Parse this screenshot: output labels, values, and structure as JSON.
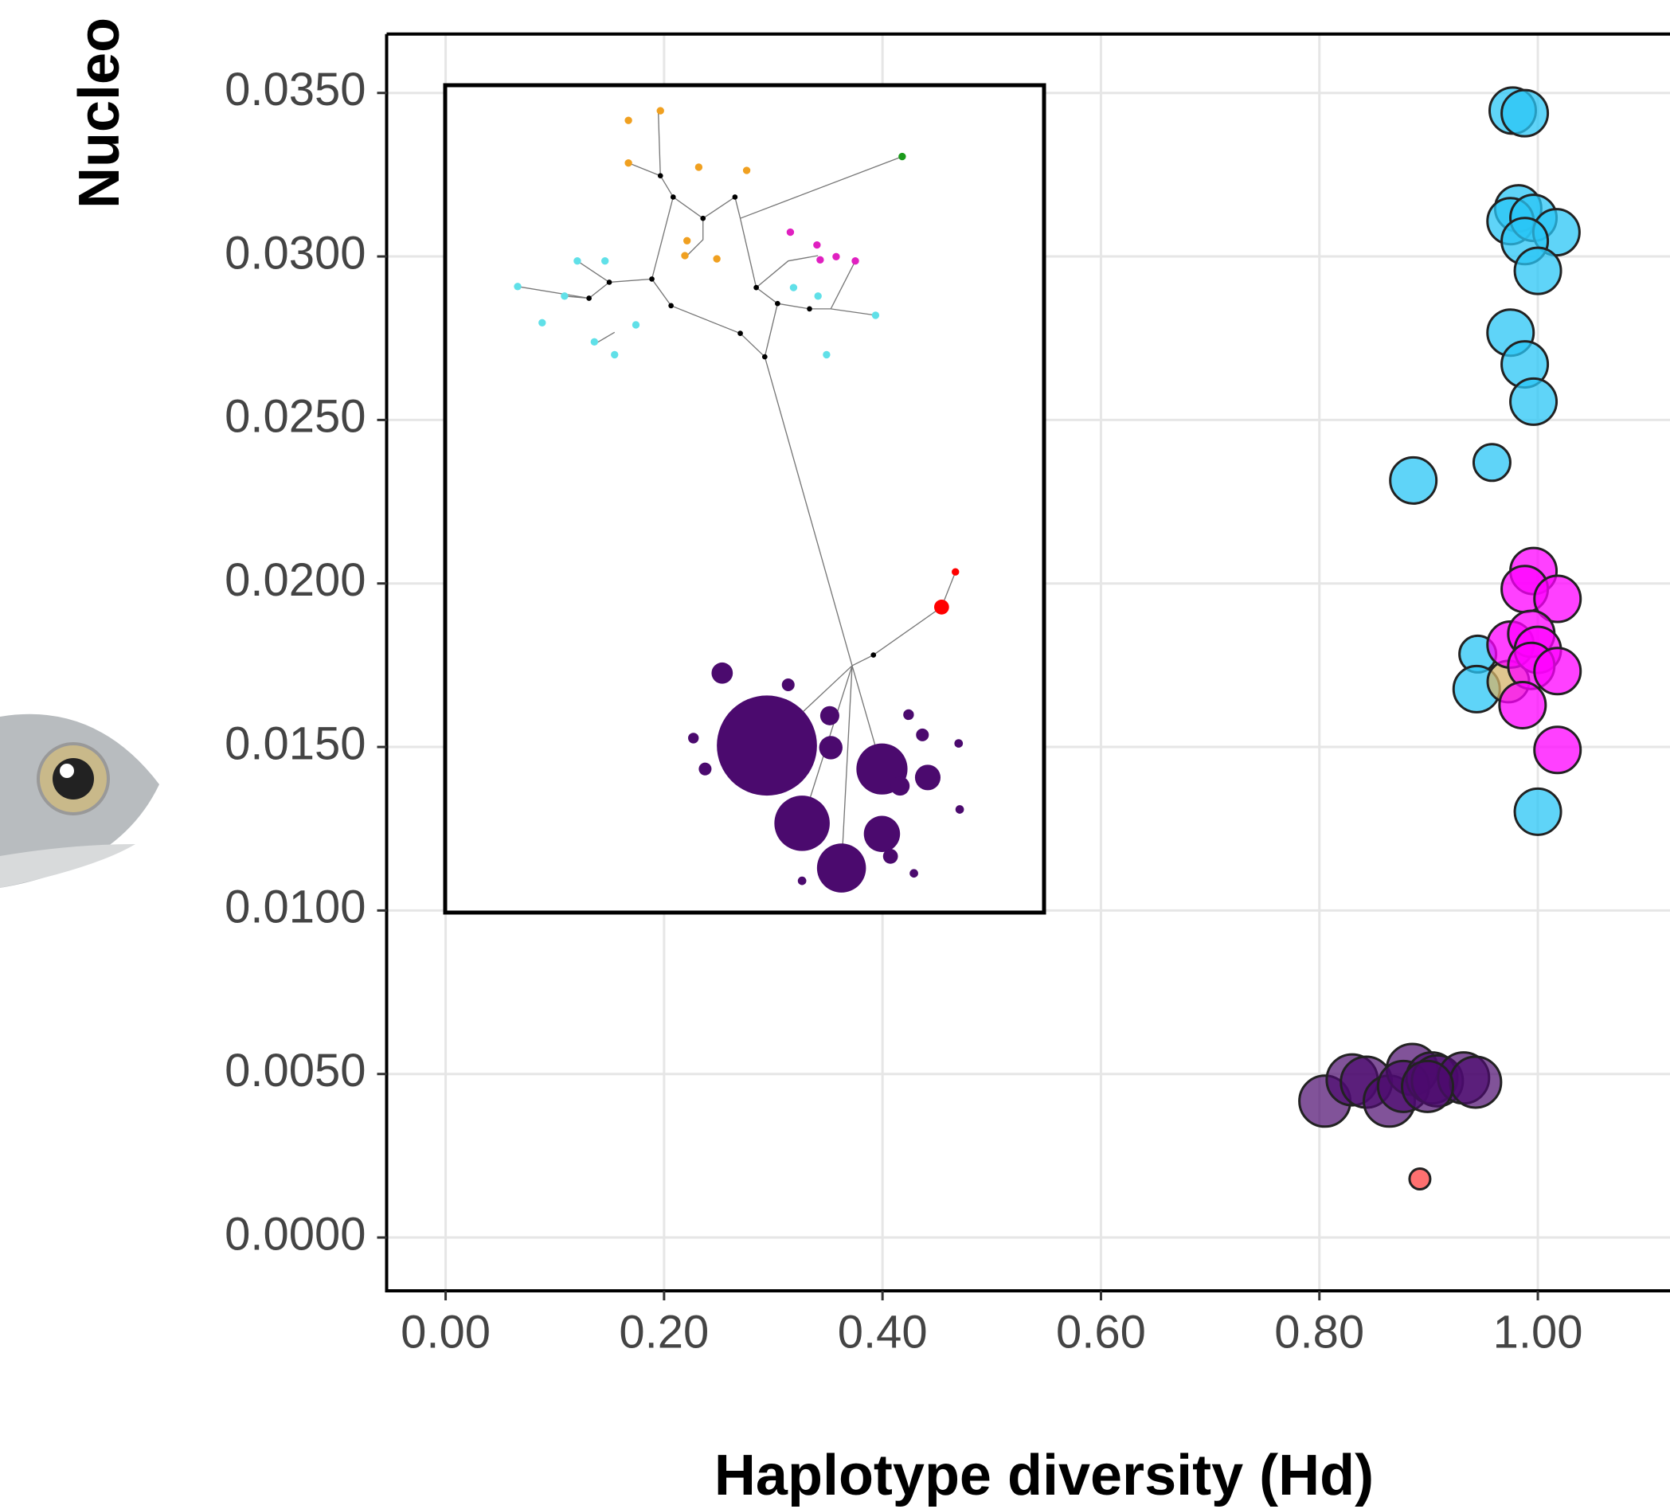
{
  "chart_data": {
    "type": "scatter",
    "x_label": "Haplotype diversity (Hd)",
    "y_label": "Nucleo",
    "xlim": [
      -0.054,
      1.121
    ],
    "ylim": [
      -0.00163,
      0.0368
    ],
    "xticks": [
      {
        "value": 0,
        "label": "0.00"
      },
      {
        "value": 0.2,
        "label": "0.20"
      },
      {
        "value": 0.4,
        "label": "0.40"
      },
      {
        "value": 0.6,
        "label": "0.60"
      },
      {
        "value": 0.8,
        "label": "0.80"
      },
      {
        "value": 1,
        "label": "1.00"
      }
    ],
    "yticks": [
      {
        "value": 0,
        "label": "0.0000"
      },
      {
        "value": 0.005,
        "label": "0.0050"
      },
      {
        "value": 0.01,
        "label": "0.0100"
      },
      {
        "value": 0.015,
        "label": "0.0150"
      },
      {
        "value": 0.02,
        "label": "0.0200"
      },
      {
        "value": 0.025,
        "label": "0.0250"
      },
      {
        "value": 0.03,
        "label": "0.0300"
      },
      {
        "value": 0.035,
        "label": "0.0350"
      }
    ],
    "grid": true,
    "series": [
      {
        "color": "#29c5f6",
        "x": [
          0.977,
          0.988,
          0.982,
          0.975,
          0.996,
          1.017,
          0.988,
          1.0,
          0.975,
          0.988,
          0.996,
          0.958,
          0.886,
          0.945,
          0.944,
          1.0
        ],
        "values": [
          0.03446,
          0.03438,
          0.03147,
          0.03108,
          0.03118,
          0.03074,
          0.03047,
          0.02956,
          0.02767,
          0.0267,
          0.02556,
          0.0237,
          0.02315,
          0.01784,
          0.01677,
          0.01302
        ]
      },
      {
        "color": "#d4b46a",
        "x": [
          0.973
        ],
        "values": [
          0.017
        ]
      },
      {
        "color": "#ff00ff",
        "x": [
          0.996,
          0.988,
          1.018,
          0.975,
          0.994,
          1.0,
          0.994,
          1.018,
          0.986,
          1.018
        ],
        "values": [
          0.02038,
          0.01983,
          0.01953,
          0.01813,
          0.01846,
          0.01797,
          0.01748,
          0.01732,
          0.01628,
          0.01491
        ]
      },
      {
        "color": "#4b0a6e",
        "x": [
          0.805,
          0.83,
          0.843,
          0.864,
          0.885,
          0.877,
          0.903,
          0.908,
          0.932,
          0.943,
          0.899
        ],
        "values": [
          0.00417,
          0.00482,
          0.00475,
          0.00417,
          0.00514,
          0.00462,
          0.00488,
          0.00479,
          0.00488,
          0.00475,
          0.00462
        ]
      },
      {
        "color": "#ff4040",
        "x": [
          0.892
        ],
        "values": [
          0.00179
        ]
      }
    ]
  }
}
